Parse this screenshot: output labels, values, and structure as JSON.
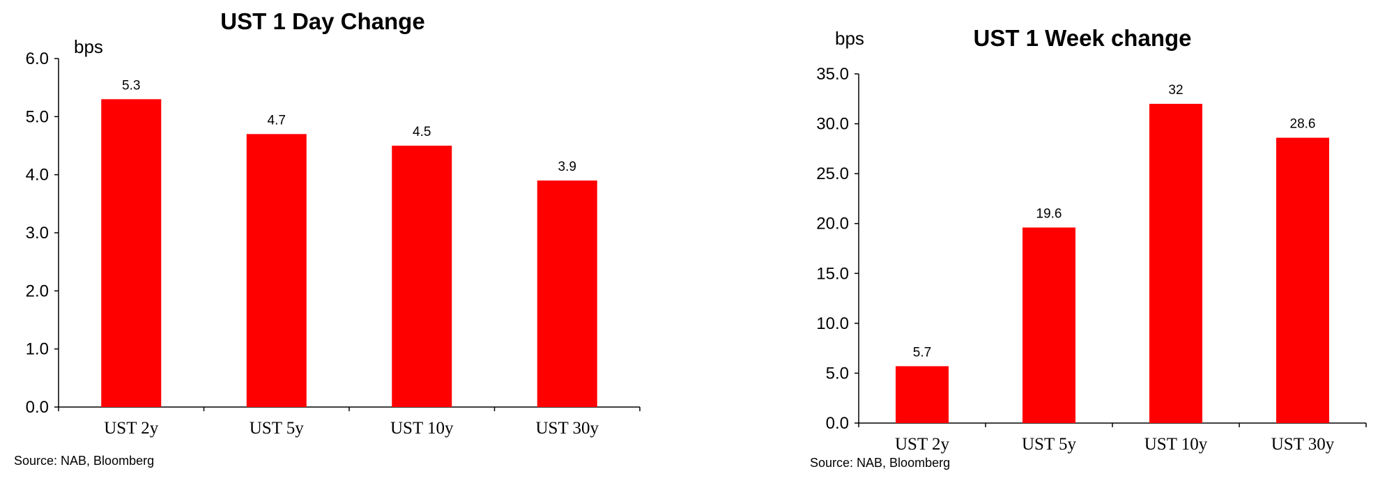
{
  "chart_data": [
    {
      "type": "bar",
      "title": "UST 1 Day Change",
      "unit_label": "bps",
      "categories": [
        "UST 2y",
        "UST 5y",
        "UST 10y",
        "UST 30y"
      ],
      "series": [
        {
          "values": [
            5.3,
            4.7,
            4.5,
            3.9
          ]
        }
      ],
      "data_labels": [
        "5.3",
        "4.7",
        "4.5",
        "3.9"
      ],
      "y_ticks": [
        "0.0",
        "1.0",
        "2.0",
        "3.0",
        "4.0",
        "5.0",
        "6.0"
      ],
      "ylim": [
        0,
        6
      ],
      "grid": false,
      "bar_color": "#ff0000",
      "source": "Source: NAB, Bloomberg"
    },
    {
      "type": "bar",
      "title": "UST 1 Week change",
      "unit_label": "bps",
      "categories": [
        "UST 2y",
        "UST 5y",
        "UST 10y",
        "UST 30y"
      ],
      "series": [
        {
          "values": [
            5.7,
            19.6,
            32,
            28.6
          ]
        }
      ],
      "data_labels": [
        "5.7",
        "19.6",
        "32",
        "28.6"
      ],
      "y_ticks": [
        "0.0",
        "5.0",
        "10.0",
        "15.0",
        "20.0",
        "25.0",
        "30.0",
        "35.0"
      ],
      "ylim": [
        0,
        35
      ],
      "grid": false,
      "bar_color": "#ff0000",
      "source": "Source: NAB, Bloomberg"
    }
  ]
}
